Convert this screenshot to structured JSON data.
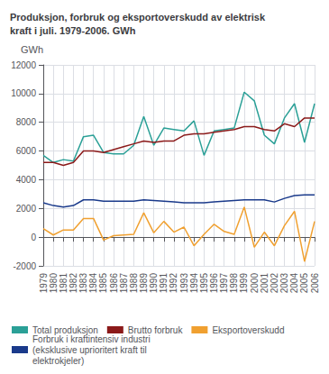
{
  "chart_data": {
    "type": "line",
    "title": "Produksjon, forbruk og eksportoverskudd av elektrisk\nkraft i juli. 1979-2006. GWh",
    "ylabel": "GWh",
    "x": [
      1979,
      1980,
      1981,
      1982,
      1983,
      1984,
      1985,
      1986,
      1987,
      1988,
      1989,
      1990,
      1991,
      1992,
      1993,
      1994,
      1995,
      1996,
      1997,
      1998,
      1999,
      2000,
      2001,
      2002,
      2003,
      2004,
      2005,
      2006
    ],
    "series": [
      {
        "name": "Total produksjon",
        "color": "#2ba097",
        "values": [
          5700,
          5200,
          5400,
          5300,
          7000,
          7100,
          5900,
          5800,
          5800,
          6400,
          8400,
          6400,
          7600,
          7500,
          7400,
          8100,
          5700,
          7400,
          7500,
          7600,
          10100,
          9500,
          7100,
          6500,
          8300,
          9300,
          6600,
          9300
        ]
      },
      {
        "name": "Brutto forbruk",
        "color": "#8b1a1a",
        "values": [
          5200,
          5200,
          5000,
          5200,
          6000,
          6000,
          5900,
          6100,
          6300,
          6500,
          6700,
          6600,
          6700,
          6700,
          7100,
          7200,
          7200,
          7300,
          7400,
          7500,
          7700,
          7700,
          7500,
          7400,
          7900,
          7700,
          8300,
          8300
        ]
      },
      {
        "name": "Eksportoverskudd",
        "color": "#f0a030",
        "values": [
          600,
          150,
          500,
          500,
          1300,
          1300,
          -200,
          100,
          150,
          200,
          1700,
          300,
          1100,
          350,
          700,
          -600,
          200,
          900,
          400,
          200,
          2100,
          -700,
          350,
          -600,
          800,
          1800,
          -1700,
          1100
        ]
      },
      {
        "name": "Forbruk i kraftintensiv industri\n(eksklusive uprioritert kraft til\nelektrokjeler)",
        "color": "#1a3a8b",
        "values": [
          2400,
          2200,
          2100,
          2200,
          2600,
          2600,
          2500,
          2500,
          2500,
          2500,
          2600,
          2550,
          2500,
          2450,
          2400,
          2400,
          2400,
          2450,
          2500,
          2550,
          2600,
          2600,
          2600,
          2450,
          2700,
          2900,
          2950,
          2950
        ]
      }
    ],
    "xlim": [
      1979,
      2006
    ],
    "xticks": [
      1979,
      1980,
      1981,
      1982,
      1983,
      1984,
      1985,
      1986,
      1987,
      1988,
      1989,
      1990,
      1991,
      1992,
      1993,
      1994,
      1995,
      1996,
      1997,
      1998,
      1999,
      2000,
      2001,
      2002,
      2003,
      2004,
      2005,
      2006
    ],
    "ylim": [
      -2000,
      12000
    ],
    "yticks": [
      -2000,
      0,
      2000,
      4000,
      6000,
      8000,
      10000,
      12000
    ],
    "grid": true,
    "legend": "bottom"
  }
}
